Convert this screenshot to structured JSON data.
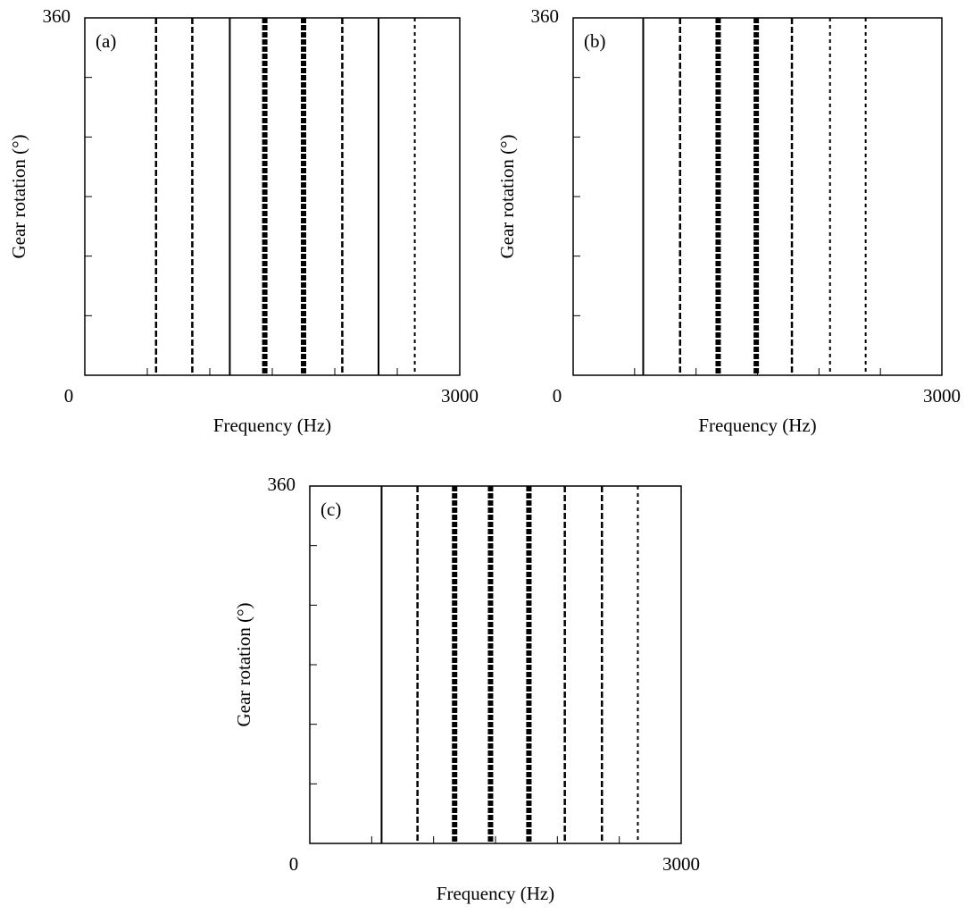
{
  "chart_data": [
    {
      "type": "spectrogram",
      "annotation": "(a)",
      "xlabel": "Frequency (Hz)",
      "ylabel": "Gear rotation (°)",
      "xlim": [
        0,
        3000
      ],
      "ylim": [
        0,
        360
      ],
      "xticks": [
        0,
        3000
      ],
      "yticks": [
        360
      ],
      "xminor_ticks": [
        500,
        1000,
        1500,
        2000,
        2500
      ],
      "yminor_ticks": [
        60,
        120,
        180,
        240,
        300
      ],
      "color": "#000000",
      "lines": [
        570,
        860,
        1160,
        1440,
        1750,
        2060,
        2350,
        2640
      ],
      "line_styles": [
        "dashed",
        "dashed",
        "solid",
        "heavy",
        "heavy",
        "dashed",
        "solid",
        "dotted"
      ]
    },
    {
      "type": "spectrogram",
      "annotation": "(b)",
      "xlabel": "Frequency (Hz)",
      "ylabel": "Gear rotation (°)",
      "xlim": [
        0,
        3000
      ],
      "ylim": [
        0,
        360
      ],
      "xticks": [
        0,
        3000
      ],
      "yticks": [
        360
      ],
      "xminor_ticks": [
        500,
        1000,
        1500,
        2000,
        2500
      ],
      "yminor_ticks": [
        60,
        120,
        180,
        240,
        300
      ],
      "color": "#000000",
      "lines": [
        570,
        870,
        1180,
        1490,
        1780,
        2090,
        2380
      ],
      "line_styles": [
        "solid",
        "dashed",
        "heavy",
        "heavy",
        "dashed",
        "dotted",
        "dotted"
      ]
    },
    {
      "type": "spectrogram",
      "annotation": "(c)",
      "xlabel": "Frequency (Hz)",
      "ylabel": "Gear rotation (°)",
      "xlim": [
        0,
        3000
      ],
      "ylim": [
        0,
        360
      ],
      "xticks": [
        0,
        3000
      ],
      "yticks": [
        360
      ],
      "xminor_ticks": [
        500,
        1000,
        1500,
        2000,
        2500
      ],
      "yminor_ticks": [
        60,
        120,
        180,
        240,
        300
      ],
      "color": "#000000",
      "lines": [
        580,
        870,
        1170,
        1460,
        1770,
        2060,
        2360,
        2650
      ],
      "line_styles": [
        "solid",
        "dashed",
        "heavy",
        "heavy",
        "heavy",
        "dashed",
        "dashed",
        "dotted"
      ]
    }
  ]
}
